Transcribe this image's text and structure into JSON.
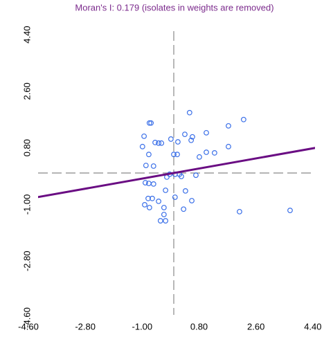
{
  "chart_data": {
    "type": "scatter",
    "title": "Moran's I: 0.179 (isolates in weights are removed)",
    "xlim": [
      -4.6,
      4.6
    ],
    "ylim": [
      -4.6,
      4.6
    ],
    "xticks": [
      {
        "value": -4.6,
        "label": "-4.60"
      },
      {
        "value": -2.8,
        "label": "-2.80"
      },
      {
        "value": -1.0,
        "label": "-1.00"
      },
      {
        "value": 0.8,
        "label": "0.80"
      },
      {
        "value": 2.6,
        "label": "2.60"
      },
      {
        "value": 4.4,
        "label": "4.40"
      }
    ],
    "yticks": [
      {
        "value": -4.6,
        "label": "-4.60"
      },
      {
        "value": -2.8,
        "label": "-2.80"
      },
      {
        "value": -1.0,
        "label": "-1.00"
      },
      {
        "value": 0.8,
        "label": "0.80"
      },
      {
        "value": 2.6,
        "label": "2.60"
      },
      {
        "value": 4.4,
        "label": "4.40"
      }
    ],
    "axis_lines": {
      "x": 0,
      "y": 0
    },
    "point_color": "#3a6fe8",
    "x": [
      -0.77,
      -0.72,
      -0.94,
      -0.99,
      -0.59,
      -0.48,
      -0.39,
      -0.09,
      0.13,
      0.5,
      0.35,
      0.59,
      0.55,
      1.03,
      1.73,
      2.21,
      1.73,
      1.29,
      1.03,
      0.81,
      0.0,
      0.11,
      -0.79,
      -0.88,
      -0.64,
      0.04,
      0.18,
      0.24,
      -0.22,
      -0.9,
      -0.79,
      -0.64,
      -0.26,
      0.37,
      0.7,
      0.57,
      0.04,
      -0.48,
      -0.68,
      -0.81,
      -0.92,
      -0.77,
      0.31,
      -0.31,
      -0.31,
      -0.42,
      -0.26,
      2.08,
      3.68,
      -0.13
    ],
    "y": [
      1.59,
      1.59,
      1.17,
      0.84,
      0.97,
      0.95,
      0.95,
      1.08,
      0.99,
      1.92,
      1.23,
      1.15,
      1.04,
      1.28,
      1.5,
      1.7,
      0.84,
      0.64,
      0.66,
      0.51,
      0.59,
      0.59,
      0.59,
      0.24,
      0.22,
      -0.04,
      -0.04,
      -0.11,
      -0.13,
      -0.31,
      -0.33,
      -0.35,
      -0.55,
      -0.57,
      -0.07,
      -0.88,
      -0.77,
      -0.9,
      -0.81,
      -0.81,
      -1.01,
      -1.1,
      -1.15,
      -1.1,
      -1.32,
      -1.52,
      -1.52,
      -1.23,
      -1.19,
      -0.04
    ],
    "fit_line": {
      "x": [
        -4.6,
        4.6
      ],
      "y": [
        -0.82,
        0.82
      ],
      "color": "#6a0d83"
    }
  }
}
